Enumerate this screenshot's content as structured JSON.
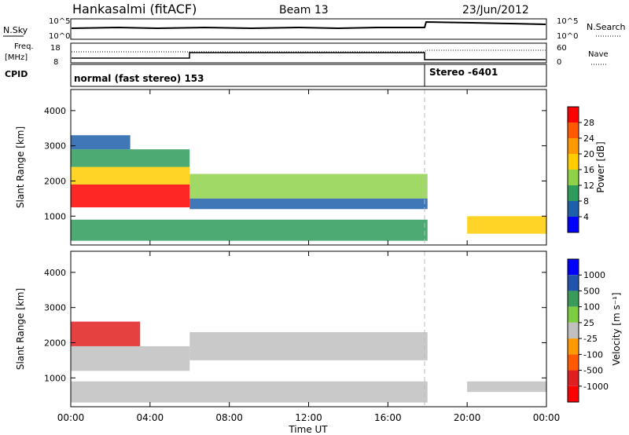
{
  "header": {
    "station": "Hankasalmi (fitACF)",
    "beam": "Beam 13",
    "date": "23/Jun/2012"
  },
  "status_panel": {
    "nsky_label": "N.Sky",
    "nsearch_label": "N.Search",
    "noise_ticks": [
      "10^5",
      "10^0"
    ],
    "freq_label_line1": "Freq.",
    "freq_label_line2": "[MHz]",
    "freq_ticks": [
      "18",
      "8"
    ],
    "nave_label": "Nave",
    "nave_ticks": [
      "60",
      "0"
    ],
    "cpid_label": "CPID",
    "cpid_segments": [
      {
        "label": "normal (fast stereo) 153",
        "start_hour": 0,
        "end_hour": 18
      },
      {
        "label": "Stereo -6401",
        "start_hour": 18,
        "end_hour": 24
      }
    ]
  },
  "time_axis": {
    "label": "Time UT",
    "ticks": [
      "00:00",
      "04:00",
      "08:00",
      "12:00",
      "16:00",
      "20:00",
      "00:00"
    ]
  },
  "power_colorbar": {
    "label": "Power [dB]",
    "ticks": [
      "28",
      "24",
      "20",
      "16",
      "12",
      "8",
      "4"
    ],
    "colors": [
      "#ff0000",
      "#ff5a00",
      "#ff9900",
      "#ffcc00",
      "#8fd24a",
      "#2e9b5a",
      "#1e5faa",
      "#0000ff"
    ]
  },
  "velocity_colorbar": {
    "label": "Velocity [m s⁻¹]",
    "ticks": [
      "1000",
      "500",
      "100",
      "25",
      "-25",
      "-100",
      "-500",
      "-1000"
    ],
    "colors": [
      "#0000ff",
      "#2255aa",
      "#3a9a5a",
      "#7ccc44",
      "#c0c0c0",
      "#ff9900",
      "#ff5a00",
      "#e02020",
      "#ff0000"
    ]
  },
  "chart_data": [
    {
      "type": "heatmap",
      "name": "power",
      "ylabel": "Slant Range [km]",
      "xlabel": "Time UT",
      "xlim": [
        0,
        24
      ],
      "ylim": [
        180,
        4600
      ],
      "yticks": [
        1000,
        2000,
        3000,
        4000
      ],
      "cpid_change_hour": 18,
      "bands": [
        {
          "t0": 0.0,
          "t1": 6.0,
          "r0": 1250,
          "r1": 1900,
          "value_db": 28
        },
        {
          "t0": 0.0,
          "t1": 6.0,
          "r0": 1900,
          "r1": 2400,
          "value_db": 14
        },
        {
          "t0": 0.0,
          "t1": 6.0,
          "r0": 2400,
          "r1": 2900,
          "value_db": 6
        },
        {
          "t0": 0.0,
          "t1": 3.0,
          "r0": 2900,
          "r1": 3300,
          "value_db": 5
        },
        {
          "t0": 6.0,
          "t1": 18.0,
          "r0": 1500,
          "r1": 2200,
          "value_db": 12
        },
        {
          "t0": 6.0,
          "t1": 18.0,
          "r0": 1200,
          "r1": 1500,
          "value_db": 5
        },
        {
          "t0": 0.0,
          "t1": 18.0,
          "r0": 300,
          "r1": 900,
          "value_db": 8
        },
        {
          "t0": 20.0,
          "t1": 24.0,
          "r0": 500,
          "r1": 1000,
          "value_db": 16
        }
      ]
    },
    {
      "type": "heatmap",
      "name": "velocity",
      "ylabel": "Slant Range [km]",
      "xlabel": "Time UT",
      "xlim": [
        0,
        24
      ],
      "ylim": [
        180,
        4600
      ],
      "yticks": [
        1000,
        2000,
        3000,
        4000
      ],
      "cpid_change_hour": 18,
      "bands": [
        {
          "t0": 0.0,
          "t1": 3.5,
          "r0": 1900,
          "r1": 2600,
          "value_ms": -300
        },
        {
          "t0": 0.0,
          "t1": 6.0,
          "r0": 1200,
          "r1": 1900,
          "value_ms": 0
        },
        {
          "t0": 6.0,
          "t1": 18.0,
          "r0": 1500,
          "r1": 2300,
          "value_ms": 0
        },
        {
          "t0": 0.0,
          "t1": 18.0,
          "r0": 300,
          "r1": 900,
          "value_ms": 0
        },
        {
          "t0": 20.0,
          "t1": 24.0,
          "r0": 600,
          "r1": 900,
          "value_ms": 0
        }
      ]
    }
  ]
}
